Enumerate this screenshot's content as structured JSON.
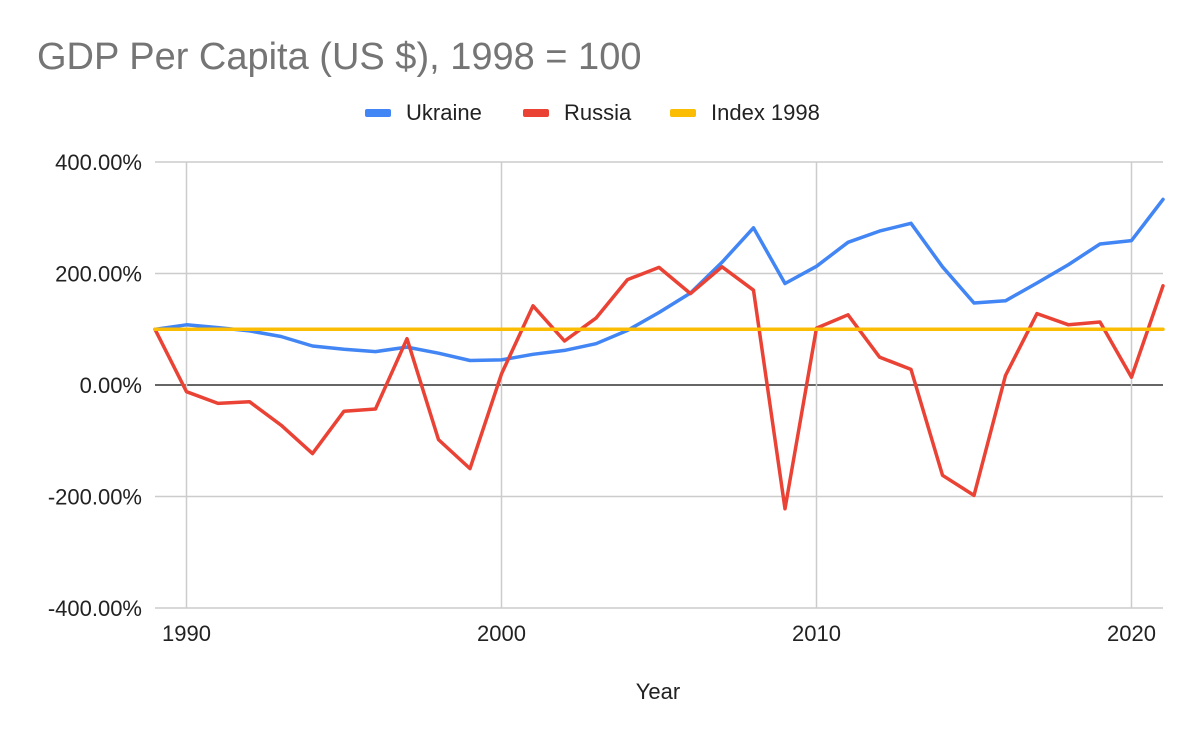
{
  "chart_data": {
    "type": "line",
    "title": "GDP Per Capita (US $),  1998 = 100",
    "xlabel": "Year",
    "ylabel": "",
    "xlim": [
      1989,
      2021
    ],
    "ylim": [
      -400,
      400
    ],
    "x_ticks": [
      1990,
      2000,
      2010,
      2020
    ],
    "y_ticks": [
      400,
      200,
      0,
      -200,
      -400
    ],
    "y_tick_labels": [
      "400.00%",
      "200.00%",
      "0.00%",
      "-200.00%",
      "-400.00%"
    ],
    "grid": true,
    "legend_position": "top",
    "x": [
      1989,
      1990,
      1991,
      1992,
      1993,
      1994,
      1995,
      1996,
      1997,
      1998,
      1999,
      2000,
      2001,
      2002,
      2003,
      2004,
      2005,
      2006,
      2007,
      2008,
      2009,
      2010,
      2011,
      2012,
      2013,
      2014,
      2015,
      2016,
      2017,
      2018,
      2019,
      2020,
      2021
    ],
    "series": [
      {
        "name": "Ukraine",
        "color": "#4285f4",
        "values": [
          100,
          108,
          103,
          97,
          87,
          70,
          64,
          60,
          68,
          57,
          44,
          45,
          55,
          62,
          74,
          98,
          130,
          165,
          220,
          282,
          182,
          213,
          256,
          276,
          290,
          212,
          147,
          151,
          183,
          216,
          253,
          259,
          333
        ]
      },
      {
        "name": "Russia",
        "color": "#ea4335",
        "values": [
          100,
          -12,
          -33,
          -30,
          -72,
          -123,
          -47,
          -43,
          83,
          -98,
          -150,
          20,
          142,
          79,
          120,
          189,
          211,
          164,
          212,
          170,
          -222,
          102,
          126,
          50,
          28,
          -162,
          -198,
          17,
          128,
          108,
          113,
          14,
          178
        ]
      },
      {
        "name": "Index 1998",
        "color": "#fbbc04",
        "values": [
          100,
          100,
          100,
          100,
          100,
          100,
          100,
          100,
          100,
          100,
          100,
          100,
          100,
          100,
          100,
          100,
          100,
          100,
          100,
          100,
          100,
          100,
          100,
          100,
          100,
          100,
          100,
          100,
          100,
          100,
          100,
          100,
          100
        ]
      }
    ]
  }
}
